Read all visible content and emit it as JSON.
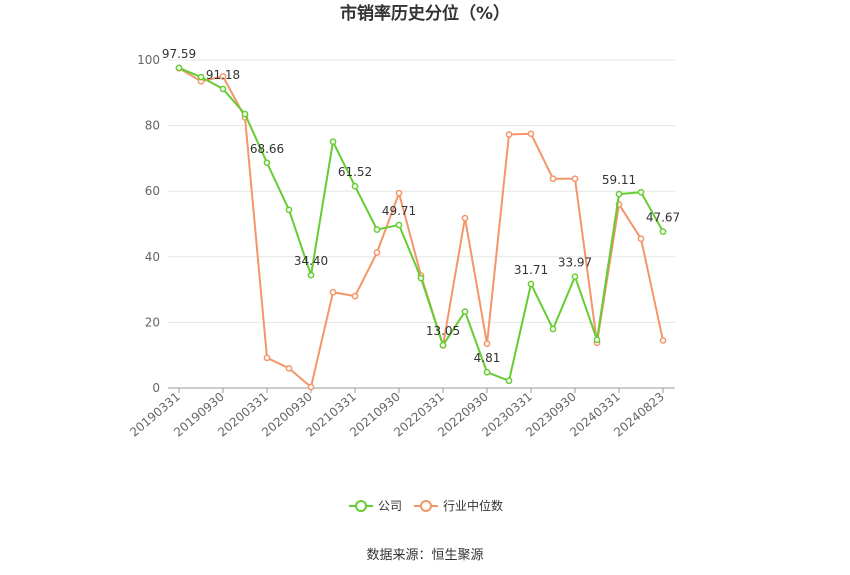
{
  "chart_data": {
    "type": "line",
    "title": "市销率历史分位（%）",
    "xlabel": "",
    "ylabel": "",
    "ylim": [
      0,
      100
    ],
    "yticks": [
      0,
      20,
      40,
      60,
      80,
      100
    ],
    "x": [
      "20190331",
      "20190630",
      "20190930",
      "20191231",
      "20200331",
      "20200630",
      "20200930",
      "20201231",
      "20210331",
      "20210630",
      "20210930",
      "20211231",
      "20220331",
      "20220630",
      "20220930",
      "20221231",
      "20230331",
      "20230630",
      "20230930",
      "20231231",
      "20240331",
      "20240630",
      "20240823"
    ],
    "xticks": [
      "20190331",
      "20190930",
      "20200331",
      "20200930",
      "20210331",
      "20210930",
      "20220331",
      "20220930",
      "20230331",
      "20230930",
      "20240331",
      "20240823"
    ],
    "grid": true,
    "legend_position": "bottom",
    "series": [
      {
        "name": "公司",
        "color": "#66cc33",
        "values": [
          97.59,
          94.8,
          91.18,
          83.5,
          68.66,
          54.3,
          34.4,
          75.1,
          61.52,
          48.3,
          49.71,
          33.5,
          13.05,
          23.3,
          4.81,
          2.2,
          31.71,
          18.0,
          33.97,
          14.7,
          59.11,
          59.7,
          47.67
        ],
        "labels": {
          "0": "97.59",
          "2": "91.18",
          "4": "68.66",
          "6": "34.40",
          "8": "61.52",
          "10": "49.71",
          "12": "13.05",
          "14": "4.81",
          "16": "31.71",
          "18": "33.97",
          "20": "59.11",
          "22": "47.67"
        }
      },
      {
        "name": "行业中位数",
        "color": "#f4956a",
        "values": [
          97.5,
          93.5,
          95.0,
          82.5,
          9.2,
          6.0,
          0.3,
          29.2,
          28.0,
          41.3,
          59.4,
          34.3,
          13.0,
          51.8,
          13.5,
          77.3,
          77.5,
          63.8,
          63.8,
          13.8,
          56.0,
          45.5,
          14.5
        ]
      }
    ]
  },
  "footer": {
    "source": "数据来源：恒生聚源"
  }
}
